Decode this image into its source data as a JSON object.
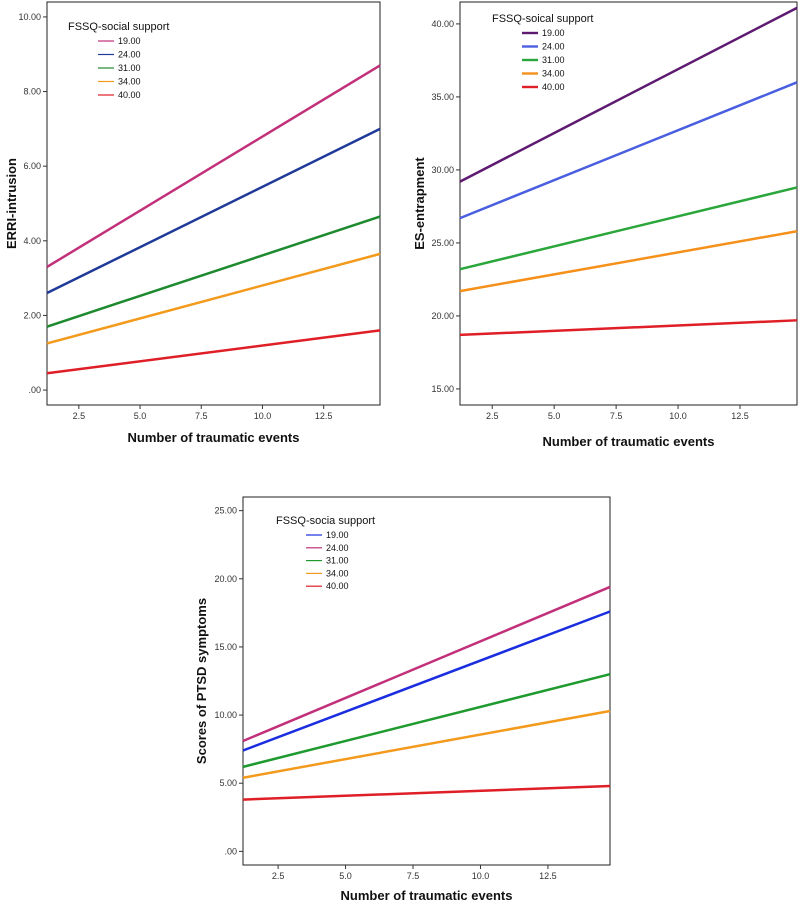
{
  "chart_data": [
    {
      "type": "line",
      "xlabel": "Number of traumatic events",
      "ylabel": "ERRI-intrusion",
      "xlim": [
        1.2,
        14.8
      ],
      "ylim": [
        -0.4,
        10.4
      ],
      "xticks": [
        2.5,
        5.0,
        7.5,
        10.0,
        12.5
      ],
      "xtick_labels": [
        "2.5",
        "5.0",
        "7.5",
        "10.0",
        "12.5"
      ],
      "yticks": [
        0,
        2,
        4,
        6,
        8,
        10
      ],
      "ytick_labels": [
        ".00",
        "2.00",
        "4.00",
        "6.00",
        "8.00",
        "10.00"
      ],
      "legend_title": "FSSQ-social support",
      "legend_position": "top-left",
      "series": [
        {
          "name": "19.00",
          "color": "#c2307a",
          "x": [
            1.2,
            14.8
          ],
          "y": [
            3.3,
            8.7
          ]
        },
        {
          "name": "24.00",
          "color": "#1f3a99",
          "x": [
            1.2,
            14.8
          ],
          "y": [
            2.6,
            7.0
          ]
        },
        {
          "name": "31.00",
          "color": "#1e8a2e",
          "x": [
            1.2,
            14.8
          ],
          "y": [
            1.7,
            4.65
          ]
        },
        {
          "name": "34.00",
          "color": "#f39a1c",
          "x": [
            1.2,
            14.8
          ],
          "y": [
            1.25,
            3.65
          ]
        },
        {
          "name": "40.00",
          "color": "#e01e26",
          "x": [
            1.2,
            14.8
          ],
          "y": [
            0.45,
            1.6
          ]
        }
      ]
    },
    {
      "type": "line",
      "xlabel": "Number of traumatic events",
      "ylabel": "ES-entrapment",
      "xlim": [
        1.2,
        14.8
      ],
      "ylim": [
        13.9,
        41.5
      ],
      "xticks": [
        2.5,
        5.0,
        7.5,
        10.0,
        12.5
      ],
      "xtick_labels": [
        "2.5",
        "5.0",
        "7.5",
        "10.0",
        "12.5"
      ],
      "yticks": [
        15,
        20,
        25,
        30,
        35,
        40
      ],
      "ytick_labels": [
        "15.00",
        "20.00",
        "25.00",
        "30.00",
        "35.00",
        "40.00"
      ],
      "legend_title": "FSSQ-soical support",
      "legend_position": "top-left",
      "series": [
        {
          "name": "19.00",
          "color": "#5e1a70",
          "x": [
            1.2,
            14.8
          ],
          "y": [
            29.2,
            41.1
          ]
        },
        {
          "name": "24.00",
          "color": "#4a5fe0",
          "x": [
            1.2,
            14.8
          ],
          "y": [
            26.7,
            36.0
          ]
        },
        {
          "name": "31.00",
          "color": "#2aa63a",
          "x": [
            1.2,
            14.8
          ],
          "y": [
            23.2,
            28.8
          ]
        },
        {
          "name": "34.00",
          "color": "#f5901a",
          "x": [
            1.2,
            14.8
          ],
          "y": [
            21.7,
            25.8
          ]
        },
        {
          "name": "40.00",
          "color": "#e01e26",
          "x": [
            1.2,
            14.8
          ],
          "y": [
            18.7,
            19.7
          ]
        }
      ]
    },
    {
      "type": "line",
      "xlabel": "Number of traumatic events",
      "ylabel": "Scores of PTSD symptoms",
      "xlim": [
        1.2,
        14.8
      ],
      "ylim": [
        -1.0,
        26.0
      ],
      "xticks": [
        2.5,
        5.0,
        7.5,
        10.0,
        12.5
      ],
      "xtick_labels": [
        "2.5",
        "5.0",
        "7.5",
        "10.0",
        "12.5"
      ],
      "yticks": [
        0,
        5,
        10,
        15,
        20,
        25
      ],
      "ytick_labels": [
        ".00",
        "5.00",
        "10.00",
        "15.00",
        "20.00",
        "25.00"
      ],
      "legend_title": "FSSQ-socia support",
      "legend_position": "top-left",
      "series": [
        {
          "name": "19.00",
          "color": "#1a2ee0",
          "x": [
            1.2,
            14.8
          ],
          "y": [
            7.4,
            17.6
          ]
        },
        {
          "name": "24.00",
          "color": "#c2307a",
          "x": [
            1.2,
            14.8
          ],
          "y": [
            8.1,
            19.4
          ]
        },
        {
          "name": "31.00",
          "color": "#1e9a2e",
          "x": [
            1.2,
            14.8
          ],
          "y": [
            6.2,
            13.0
          ]
        },
        {
          "name": "34.00",
          "color": "#f39a1c",
          "x": [
            1.2,
            14.8
          ],
          "y": [
            5.4,
            10.3
          ]
        },
        {
          "name": "40.00",
          "color": "#e01e26",
          "x": [
            1.2,
            14.8
          ],
          "y": [
            3.8,
            4.8
          ]
        }
      ]
    }
  ]
}
